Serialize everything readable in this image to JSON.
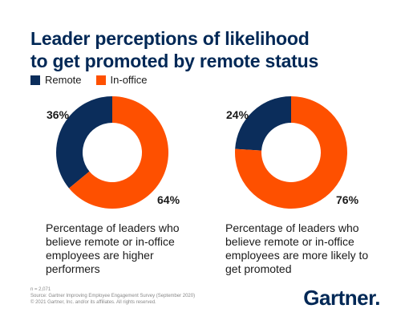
{
  "title_lines": [
    "Leader perceptions of likelihood",
    "to get promoted by remote status"
  ],
  "legend": [
    {
      "label": "Remote",
      "color": "#0b2d5b"
    },
    {
      "label": "In-office",
      "color": "#fe5000"
    }
  ],
  "chart_data": [
    {
      "type": "pie",
      "donut": true,
      "categories": [
        "Remote",
        "In-office"
      ],
      "values": [
        36,
        64
      ],
      "labels": [
        "36%",
        "64%"
      ],
      "caption": "Percentage of leaders who believe remote or in-office employees are higher performers"
    },
    {
      "type": "pie",
      "donut": true,
      "categories": [
        "Remote",
        "In-office"
      ],
      "values": [
        24,
        76
      ],
      "labels": [
        "24%",
        "76%"
      ],
      "caption": "Percentage of leaders who believe remote or in-office employees are more likely to get promoted"
    }
  ],
  "footnote": [
    "n = 2,071",
    "Source: Gartner Improving Employee Engagement Survey (September 2020)",
    "© 2021 Gartner, Inc. and/or its affiliates. All rights reserved."
  ],
  "logo_text": "Gartner."
}
